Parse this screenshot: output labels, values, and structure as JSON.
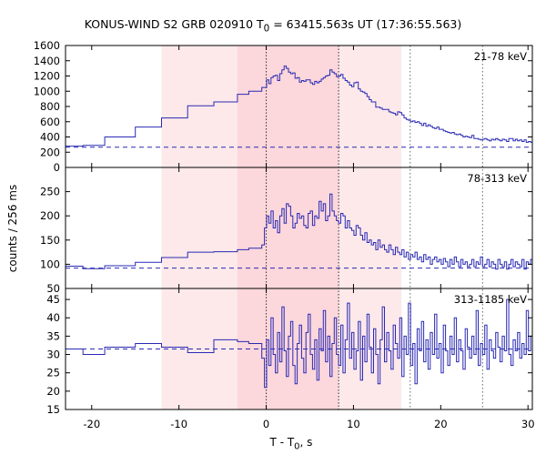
{
  "chart_data": {
    "type": "line",
    "title": "KONUS-WIND S2 GRB 020910 T0 = 63415.563s UT (17:36:55.563)",
    "title_parts": {
      "pre": "KONUS-WIND S2 GRB 020910 T",
      "sub": "0",
      "post": " = 63415.563s UT (17:36:55.563)"
    },
    "xlabel": "T - T0, s",
    "xlabel_parts": {
      "pre": "T - T",
      "sub": "0",
      "post": ", s"
    },
    "ylabel": "counts / 256 ms",
    "xlim": [
      -23,
      30.5
    ],
    "xticks": [
      -20,
      -10,
      0,
      10,
      20,
      30
    ],
    "xtick_labels": [
      "-20",
      "-10",
      "0",
      "10",
      "20",
      "30"
    ],
    "shaded_intervals": [
      {
        "x": [
          -12,
          15.5
        ],
        "color": "#fde9ea"
      },
      {
        "x": [
          -3.3,
          8.3
        ],
        "color": "#fcd7db"
      }
    ],
    "dotted_lines": [
      0,
      8.3
    ],
    "dotted_lines_gray": [
      16.5,
      24.8
    ],
    "series_color": "#2a2ab4",
    "panels": [
      {
        "band": "21-78 keV",
        "ylim": [
          0,
          1600
        ],
        "yticks": [
          0,
          200,
          400,
          600,
          800,
          1000,
          1200,
          1400,
          1600
        ],
        "ytick_labels": [
          "0",
          "200",
          "400",
          "600",
          "800",
          "1000",
          "1200",
          "1400",
          "1600"
        ],
        "background": 265,
        "steps": [
          [
            -23,
            280
          ],
          [
            -21,
            290
          ],
          [
            -18.5,
            400
          ],
          [
            -15,
            530
          ],
          [
            -12,
            650
          ],
          [
            -9,
            810
          ],
          [
            -6,
            860
          ],
          [
            -3.3,
            960
          ],
          [
            -2,
            1000
          ],
          [
            -0.5,
            1050
          ]
        ],
        "x": [
          -0.2,
          0.05,
          0.3,
          0.55,
          0.8,
          1.05,
          1.3,
          1.55,
          1.8,
          2.05,
          2.3,
          2.55,
          2.8,
          3.05,
          3.3,
          3.55,
          3.8,
          4.05,
          4.3,
          4.55,
          4.8,
          5.05,
          5.3,
          5.55,
          5.8,
          6.05,
          6.3,
          6.55,
          6.8,
          7.05,
          7.3,
          7.55,
          7.8,
          8.05,
          8.3,
          8.55,
          8.8,
          9.05,
          9.3,
          9.55,
          9.8,
          10.05,
          10.3,
          10.55,
          10.8,
          11.05,
          11.3,
          11.55,
          11.8,
          12.05,
          12.3,
          12.55,
          12.8,
          13.05,
          13.3,
          13.55,
          13.8,
          14.05,
          14.3,
          14.55,
          14.8,
          15.05,
          15.3,
          15.55,
          15.8,
          16.05,
          16.3,
          16.55,
          16.8,
          17.05,
          17.3,
          17.55,
          17.8,
          18.05,
          18.3,
          18.55,
          18.8,
          19.05,
          19.3,
          19.55,
          19.8,
          20.05,
          20.3,
          20.55,
          20.8,
          21.05,
          21.3,
          21.55,
          21.8,
          22.05,
          22.3,
          22.55,
          22.8,
          23.05,
          23.3,
          23.55,
          23.8,
          24.05,
          24.3,
          24.55,
          24.8,
          25.05,
          25.3,
          25.55,
          25.8,
          26.05,
          26.3,
          26.55,
          26.8,
          27.05,
          27.3,
          27.55,
          27.8,
          28.05,
          28.3,
          28.55,
          28.8,
          29.05,
          29.3,
          29.55,
          29.8,
          30.05,
          30.3
        ],
        "y": [
          1050,
          1150,
          1100,
          1180,
          1200,
          1210,
          1140,
          1230,
          1280,
          1330,
          1300,
          1250,
          1230,
          1240,
          1170,
          1180,
          1120,
          1140,
          1130,
          1150,
          1150,
          1110,
          1090,
          1130,
          1110,
          1130,
          1160,
          1180,
          1200,
          1210,
          1280,
          1250,
          1230,
          1190,
          1200,
          1220,
          1170,
          1140,
          1120,
          1080,
          1060,
          1110,
          1120,
          1030,
          1000,
          990,
          970,
          930,
          890,
          860,
          860,
          790,
          790,
          780,
          760,
          760,
          760,
          730,
          720,
          710,
          690,
          730,
          720,
          690,
          650,
          630,
          620,
          600,
          610,
          590,
          600,
          580,
          550,
          580,
          540,
          560,
          540,
          520,
          510,
          530,
          500,
          500,
          480,
          470,
          460,
          450,
          460,
          440,
          430,
          440,
          420,
          400,
          410,
          400,
          390,
          420,
          380,
          380,
          370,
          360,
          370,
          380,
          360,
          350,
          370,
          360,
          380,
          360,
          350,
          370,
          360,
          340,
          380,
          380,
          350,
          370,
          350,
          360,
          340,
          360,
          330,
          340,
          330
        ]
      },
      {
        "band": "78-313 keV",
        "ylim": [
          50,
          300
        ],
        "yticks": [
          50,
          100,
          150,
          200,
          250
        ],
        "ytick_labels": [
          "50",
          "100",
          "150",
          "200",
          "250"
        ],
        "background": 92,
        "steps": [
          [
            -23,
            96
          ],
          [
            -21,
            91
          ],
          [
            -18.5,
            97
          ],
          [
            -15,
            104
          ],
          [
            -12,
            114
          ],
          [
            -9,
            125
          ],
          [
            -6,
            126
          ],
          [
            -3.3,
            130
          ],
          [
            -2,
            133
          ],
          [
            -0.5,
            140
          ]
        ],
        "x": [
          -0.2,
          0.05,
          0.3,
          0.55,
          0.8,
          1.05,
          1.3,
          1.55,
          1.8,
          2.05,
          2.3,
          2.55,
          2.8,
          3.05,
          3.3,
          3.55,
          3.8,
          4.05,
          4.3,
          4.55,
          4.8,
          5.05,
          5.3,
          5.55,
          5.8,
          6.05,
          6.3,
          6.55,
          6.8,
          7.05,
          7.3,
          7.55,
          7.8,
          8.05,
          8.3,
          8.55,
          8.8,
          9.05,
          9.3,
          9.55,
          9.8,
          10.05,
          10.3,
          10.55,
          10.8,
          11.05,
          11.3,
          11.55,
          11.8,
          12.05,
          12.3,
          12.55,
          12.8,
          13.05,
          13.3,
          13.55,
          13.8,
          14.05,
          14.3,
          14.55,
          14.8,
          15.05,
          15.3,
          15.55,
          15.8,
          16.05,
          16.3,
          16.55,
          16.8,
          17.05,
          17.3,
          17.55,
          17.8,
          18.05,
          18.3,
          18.55,
          18.8,
          19.05,
          19.3,
          19.55,
          19.8,
          20.05,
          20.3,
          20.55,
          20.8,
          21.05,
          21.3,
          21.55,
          21.8,
          22.05,
          22.3,
          22.55,
          22.8,
          23.05,
          23.3,
          23.55,
          23.8,
          24.05,
          24.3,
          24.55,
          24.8,
          25.05,
          25.3,
          25.55,
          25.8,
          26.05,
          26.3,
          26.55,
          26.8,
          27.05,
          27.3,
          27.55,
          27.8,
          28.05,
          28.3,
          28.55,
          28.8,
          29.05,
          29.3,
          29.55,
          29.8,
          30.05,
          30.3
        ],
        "y": [
          175,
          200,
          185,
          210,
          175,
          190,
          165,
          200,
          215,
          185,
          225,
          220,
          200,
          175,
          185,
          205,
          195,
          200,
          180,
          175,
          205,
          210,
          180,
          200,
          195,
          230,
          210,
          225,
          190,
          200,
          245,
          210,
          200,
          190,
          185,
          205,
          200,
          175,
          190,
          175,
          170,
          160,
          180,
          175,
          160,
          150,
          165,
          145,
          150,
          140,
          145,
          130,
          150,
          135,
          140,
          130,
          125,
          140,
          130,
          120,
          135,
          125,
          120,
          130,
          115,
          125,
          110,
          120,
          115,
          125,
          110,
          115,
          105,
          120,
          110,
          115,
          100,
          110,
          115,
          105,
          110,
          100,
          112,
          105,
          95,
          110,
          100,
          115,
          105,
          95,
          110,
          100,
          105,
          95,
          100,
          110,
          95,
          105,
          100,
          115,
          95,
          100,
          110,
          95,
          105,
          100,
          90,
          110,
          100,
          95,
          105,
          90,
          100,
          110,
          95,
          105,
          100,
          95,
          110,
          90,
          105,
          100,
          110
        ]
      },
      {
        "band": "313-1185 keV",
        "ylim": [
          15,
          48
        ],
        "yticks": [
          15,
          20,
          25,
          30,
          35,
          40,
          45
        ],
        "ytick_labels": [
          "15",
          "20",
          "25",
          "30",
          "35",
          "40",
          "45"
        ],
        "background": 31.5,
        "steps": [
          [
            -23,
            31.5
          ],
          [
            -21,
            30
          ],
          [
            -18.5,
            32
          ],
          [
            -15,
            33
          ],
          [
            -12,
            32
          ],
          [
            -9,
            30.5
          ],
          [
            -6,
            34
          ],
          [
            -3.3,
            33.5
          ],
          [
            -2,
            33
          ],
          [
            -0.5,
            29
          ]
        ],
        "x": [
          -0.2,
          0.05,
          0.3,
          0.55,
          0.8,
          1.05,
          1.3,
          1.55,
          1.8,
          2.05,
          2.3,
          2.55,
          2.8,
          3.05,
          3.3,
          3.55,
          3.8,
          4.05,
          4.3,
          4.55,
          4.8,
          5.05,
          5.3,
          5.55,
          5.8,
          6.05,
          6.3,
          6.55,
          6.8,
          7.05,
          7.3,
          7.55,
          7.8,
          8.05,
          8.3,
          8.55,
          8.8,
          9.05,
          9.3,
          9.55,
          9.8,
          10.05,
          10.3,
          10.55,
          10.8,
          11.05,
          11.3,
          11.55,
          11.8,
          12.05,
          12.3,
          12.55,
          12.8,
          13.05,
          13.3,
          13.55,
          13.8,
          14.05,
          14.3,
          14.55,
          14.8,
          15.05,
          15.3,
          15.55,
          15.8,
          16.05,
          16.3,
          16.55,
          16.8,
          17.05,
          17.3,
          17.55,
          17.8,
          18.05,
          18.3,
          18.55,
          18.8,
          19.05,
          19.3,
          19.55,
          19.8,
          20.05,
          20.3,
          20.55,
          20.8,
          21.05,
          21.3,
          21.55,
          21.8,
          22.05,
          22.3,
          22.55,
          22.8,
          23.05,
          23.3,
          23.55,
          23.8,
          24.05,
          24.3,
          24.55,
          24.8,
          25.05,
          25.3,
          25.55,
          25.8,
          26.05,
          26.3,
          26.55,
          26.8,
          27.05,
          27.3,
          27.55,
          27.8,
          28.05,
          28.3,
          28.55,
          28.8,
          29.05,
          29.3,
          29.55,
          29.8,
          30.05,
          30.3
        ],
        "y": [
          21,
          34,
          27,
          40,
          30,
          25,
          36,
          28,
          43,
          31,
          24,
          35,
          39,
          27,
          22,
          33,
          38,
          29,
          25,
          36,
          41,
          30,
          26,
          34,
          23,
          37,
          31,
          42,
          28,
          35,
          24,
          33,
          40,
          30,
          27,
          38,
          25,
          34,
          44,
          29,
          36,
          26,
          31,
          39,
          23,
          35,
          28,
          41,
          32,
          25,
          37,
          30,
          22,
          34,
          43,
          28,
          36,
          31,
          26,
          38,
          33,
          29,
          40,
          24,
          35,
          30,
          44,
          27,
          33,
          22,
          37,
          31,
          39,
          28,
          34,
          26,
          36,
          30,
          41,
          29,
          33,
          25,
          38,
          31,
          27,
          35,
          30,
          40,
          28,
          34,
          31,
          26,
          37,
          32,
          29,
          35,
          30,
          42,
          27,
          33,
          30,
          38,
          26,
          34,
          31,
          29,
          36,
          32,
          28,
          35,
          31,
          45,
          30,
          27,
          34,
          31,
          36,
          29,
          33,
          30,
          42,
          31,
          35
        ]
      }
    ]
  }
}
